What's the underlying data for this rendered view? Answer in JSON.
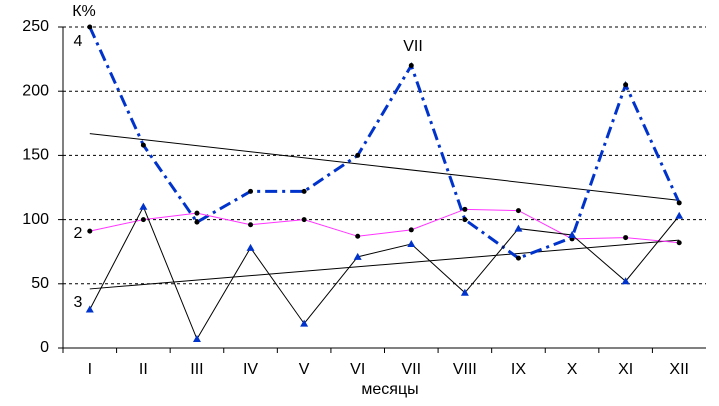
{
  "chart_data": {
    "type": "line",
    "y_label": "К%",
    "x_label": "месяцы",
    "categories": [
      "I",
      "II",
      "III",
      "IV",
      "V",
      "VI",
      "VII",
      "VIII",
      "IX",
      "X",
      "XI",
      "XII"
    ],
    "ylim": [
      0,
      250
    ],
    "yticks": [
      0,
      50,
      100,
      150,
      200,
      250
    ],
    "grid": true,
    "series": [
      {
        "color": "#0033cc",
        "style": "dash-dot",
        "marker": "dot",
        "marker_color": "#000000",
        "values": [
          250,
          158,
          98,
          122,
          122,
          150,
          220,
          100,
          70,
          86,
          205,
          113
        ]
      },
      {
        "color": "#ff33ff",
        "style": "solid",
        "marker": "dot",
        "marker_color": "#000000",
        "values": [
          91,
          100,
          105,
          96,
          100,
          87,
          92,
          108,
          107,
          85,
          86,
          82
        ]
      },
      {
        "color": "#000000",
        "style": "solid",
        "marker": "triangle",
        "marker_color": "#0033cc",
        "values": [
          30,
          110,
          7,
          78,
          19,
          71,
          81,
          43,
          93,
          88,
          52,
          103
        ]
      }
    ],
    "trends": [
      {
        "color": "#000000",
        "values": [
          167,
          115
        ]
      },
      {
        "color": "#000000",
        "values": [
          46,
          84
        ]
      }
    ],
    "annotations": [
      "4",
      "VII",
      "2",
      "3"
    ]
  }
}
